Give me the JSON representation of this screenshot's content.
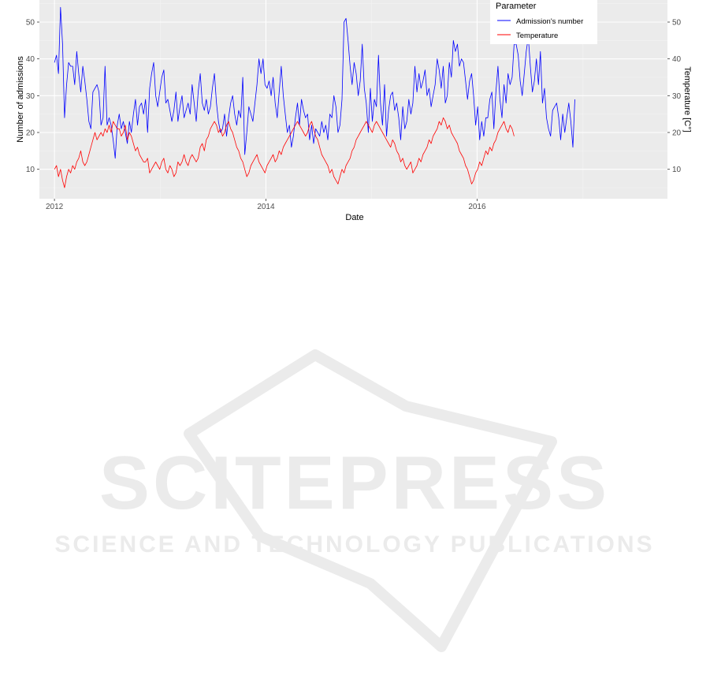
{
  "chart_data": {
    "type": "line",
    "xlabel": "Date",
    "ylabel": "Number of admissions",
    "y2label": "Temperature [C°]",
    "x_ticks": [
      "2012",
      "2014",
      "2016"
    ],
    "y_ticks": [
      10,
      20,
      30,
      40,
      50
    ],
    "y2_ticks": [
      10,
      20,
      30,
      40,
      50
    ],
    "xlim": [
      "2011-11-10",
      "2017-10-20"
    ],
    "ylim": [
      2,
      56
    ],
    "y2lim": [
      2,
      56
    ],
    "grid": true,
    "legend": {
      "title": "Parameter",
      "position": "top-right"
    },
    "series": [
      {
        "name": "Admission's number",
        "color": "#0000ff",
        "x_start": "2012-01-01",
        "step_weeks": 1,
        "values": [
          39,
          41,
          36,
          54,
          44,
          24,
          33,
          39,
          38,
          38,
          33,
          42,
          36,
          31,
          38,
          34,
          29,
          23,
          21,
          31,
          32,
          33,
          31,
          22,
          24,
          38,
          22,
          24,
          22,
          18,
          13,
          22,
          25,
          21,
          23,
          20,
          17,
          23,
          20,
          25,
          29,
          22,
          27,
          28,
          25,
          29,
          20,
          32,
          36,
          39,
          30,
          27,
          31,
          35,
          37,
          28,
          29,
          26,
          23,
          26,
          31,
          23,
          27,
          30,
          24,
          26,
          28,
          25,
          33,
          28,
          23,
          31,
          36,
          28,
          26,
          29,
          25,
          27,
          32,
          36,
          28,
          23,
          20,
          21,
          25,
          19,
          24,
          28,
          30,
          25,
          22,
          26,
          24,
          35,
          14,
          20,
          27,
          25,
          23,
          28,
          33,
          40,
          36,
          40,
          33,
          32,
          34,
          30,
          35,
          28,
          24,
          31,
          38,
          30,
          25,
          20,
          22,
          16,
          19,
          24,
          28,
          22,
          29,
          26,
          24,
          25,
          18,
          22,
          17,
          21,
          20,
          19,
          23,
          20,
          22,
          18,
          25,
          24,
          30,
          27,
          20,
          22,
          29,
          50,
          51,
          45,
          38,
          33,
          39,
          36,
          30,
          34,
          44,
          32,
          28,
          20,
          32,
          23,
          29,
          27,
          41,
          28,
          22,
          33,
          19,
          26,
          30,
          31,
          26,
          28,
          24,
          18,
          27,
          21,
          23,
          29,
          25,
          28,
          38,
          31,
          36,
          32,
          34,
          37,
          30,
          32,
          27,
          30,
          33,
          40,
          37,
          32,
          38,
          28,
          30,
          39,
          35,
          45,
          42,
          44,
          38,
          40,
          39,
          34,
          29,
          34,
          36,
          30,
          22,
          27,
          18,
          23,
          19,
          24,
          24,
          29,
          31,
          21,
          31,
          38,
          29,
          24,
          33,
          28,
          36,
          33,
          35,
          44,
          44,
          41,
          34,
          30,
          36,
          42,
          46,
          38,
          31,
          34,
          40,
          33,
          42,
          28,
          32,
          24,
          21,
          19,
          26,
          27,
          28,
          24,
          18,
          25,
          20,
          24,
          28,
          23,
          16,
          29
        ]
      },
      {
        "name": "Temperature",
        "color": "#ff0000",
        "x_start": "2012-01-01",
        "step_weeks": 1,
        "values": [
          10,
          11,
          8,
          10,
          7,
          5,
          8,
          10,
          9,
          11,
          10,
          12,
          13,
          15,
          12,
          11,
          12,
          14,
          16,
          18,
          20,
          18,
          19,
          20,
          19,
          21,
          20,
          22,
          20,
          23,
          22,
          21,
          21,
          19,
          20,
          22,
          18,
          20,
          19,
          17,
          15,
          16,
          14,
          13,
          12,
          12,
          13,
          9,
          10,
          11,
          12,
          11,
          10,
          12,
          13,
          10,
          9,
          11,
          10,
          8,
          9,
          12,
          11,
          12,
          14,
          12,
          11,
          13,
          14,
          13,
          12,
          13,
          16,
          17,
          15,
          18,
          19,
          21,
          22,
          23,
          22,
          20,
          21,
          19,
          20,
          22,
          23,
          21,
          20,
          18,
          16,
          15,
          13,
          12,
          10,
          8,
          9,
          11,
          12,
          13,
          14,
          12,
          11,
          10,
          9,
          11,
          12,
          13,
          14,
          12,
          13,
          15,
          14,
          16,
          17,
          18,
          19,
          20,
          21,
          22,
          23,
          22,
          21,
          20,
          19,
          20,
          22,
          23,
          21,
          19,
          18,
          16,
          14,
          13,
          12,
          11,
          9,
          10,
          8,
          7,
          6,
          8,
          10,
          9,
          11,
          12,
          13,
          15,
          16,
          18,
          19,
          20,
          21,
          22,
          23,
          22,
          21,
          20,
          22,
          23,
          22,
          21,
          20,
          19,
          18,
          17,
          16,
          18,
          17,
          15,
          14,
          12,
          13,
          11,
          10,
          11,
          12,
          9,
          10,
          11,
          13,
          12,
          14,
          15,
          16,
          18,
          17,
          19,
          20,
          21,
          23,
          22,
          24,
          23,
          21,
          22,
          20,
          19,
          18,
          17,
          15,
          14,
          13,
          11,
          10,
          8,
          6,
          7,
          9,
          10,
          12,
          11,
          13,
          15,
          14,
          16,
          15,
          17,
          18,
          20,
          21,
          22,
          23,
          21,
          20,
          22,
          21,
          19
        ]
      }
    ]
  },
  "watermark": {
    "main": "SCITEPRESS",
    "sub": "SCIENCE AND TECHNOLOGY PUBLICATIONS"
  }
}
